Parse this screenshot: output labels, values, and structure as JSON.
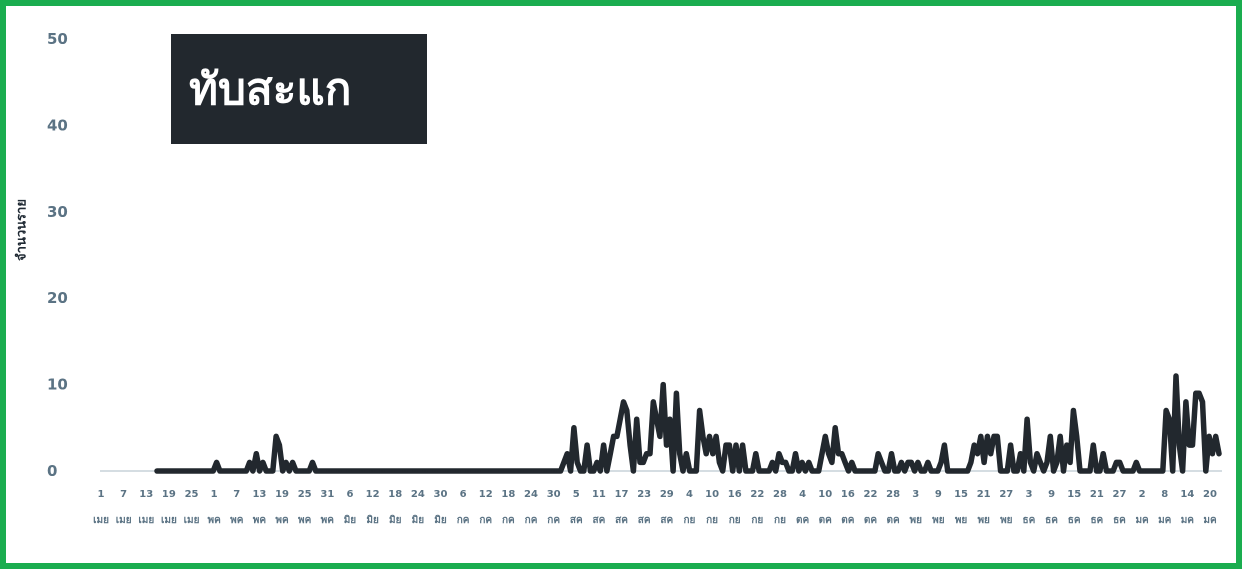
{
  "chart_data": {
    "type": "line",
    "title": "ทับสะแก",
    "ylabel": "จำนวนราย",
    "xlabel": "",
    "ylim": [
      0,
      50
    ],
    "yticks": [
      "0",
      "10",
      "20",
      "30",
      "40",
      "50"
    ],
    "xtick_days": [
      "1",
      "7",
      "13",
      "19",
      "25",
      "1",
      "7",
      "13",
      "19",
      "25",
      "31",
      "6",
      "12",
      "18",
      "24",
      "30",
      "6",
      "12",
      "18",
      "24",
      "30",
      "5",
      "11",
      "17",
      "23",
      "29",
      "4",
      "10",
      "16",
      "22",
      "28",
      "4",
      "10",
      "16",
      "22",
      "28",
      "3",
      "9",
      "15",
      "21",
      "27",
      "3",
      "9",
      "15",
      "21",
      "27",
      "2",
      "8",
      "14",
      "20"
    ],
    "xtick_months": [
      "เมย",
      "เมย",
      "เมย",
      "เมย",
      "เมย",
      "พค",
      "พค",
      "พค",
      "พค",
      "พค",
      "พค",
      "มิย",
      "มิย",
      "มิย",
      "มิย",
      "มิย",
      "กค",
      "กค",
      "กค",
      "กค",
      "กค",
      "สค",
      "สค",
      "สค",
      "สค",
      "สค",
      "กย",
      "กย",
      "กย",
      "กย",
      "กย",
      "ตค",
      "ตค",
      "ตค",
      "ตค",
      "ตค",
      "พย",
      "พย",
      "พย",
      "พย",
      "พย",
      "ธค",
      "ธค",
      "ธค",
      "ธค",
      "ธค",
      "มค",
      "มค",
      "มค",
      "มค"
    ],
    "series": [
      {
        "values": [
          0,
          0,
          0,
          0,
          0,
          0,
          0,
          0,
          0,
          0,
          0,
          0,
          0,
          0,
          0,
          0,
          0,
          0,
          1,
          0,
          0,
          0,
          0,
          0,
          0,
          0,
          0,
          0,
          1,
          0,
          2,
          0,
          1,
          0,
          0,
          0,
          4,
          3,
          0,
          1,
          0,
          1,
          0,
          0,
          0,
          0,
          0,
          1,
          0,
          0,
          0,
          0,
          0,
          0,
          0,
          0,
          0,
          0,
          0,
          0,
          0,
          0,
          0,
          0,
          0,
          0,
          0,
          0,
          0,
          0,
          0,
          0,
          0,
          0,
          0,
          0,
          0,
          0,
          0,
          0,
          0,
          0,
          0,
          0,
          0,
          0,
          0,
          0,
          0,
          0,
          0,
          0,
          0,
          0,
          0,
          0,
          0,
          0,
          0,
          0,
          0,
          0,
          0,
          0,
          0,
          0,
          0,
          0,
          0,
          0,
          0,
          0,
          0,
          0,
          0,
          0,
          0,
          0,
          0,
          0,
          0,
          0,
          0,
          1,
          2,
          0,
          5,
          1,
          0,
          0,
          3,
          0,
          0,
          1,
          0,
          3,
          0,
          2,
          4,
          4,
          6,
          8,
          7,
          3,
          0,
          6,
          1,
          1,
          2,
          2,
          8,
          6,
          4,
          10,
          3,
          6,
          0,
          9,
          2,
          0,
          2,
          0,
          0,
          0,
          7,
          4,
          2,
          4,
          2,
          4,
          1,
          0,
          3,
          3,
          0,
          3,
          0,
          3,
          0,
          0,
          0,
          2,
          0,
          0,
          0,
          0,
          1,
          0,
          2,
          1,
          1,
          0,
          0,
          2,
          0,
          1,
          0,
          1,
          0,
          0,
          0,
          2,
          4,
          2,
          1,
          5,
          2,
          2,
          1,
          0,
          1,
          0,
          0,
          0,
          0,
          0,
          0,
          0,
          2,
          1,
          0,
          0,
          2,
          0,
          0,
          1,
          0,
          1,
          1,
          0,
          1,
          0,
          0,
          1,
          0,
          0,
          0,
          1,
          3,
          0,
          0,
          0,
          0,
          0,
          0,
          0,
          1,
          3,
          2,
          4,
          1,
          4,
          2,
          4,
          4,
          0,
          0,
          0,
          3,
          0,
          0,
          2,
          0,
          6,
          1,
          0,
          2,
          1,
          0,
          1,
          4,
          0,
          1,
          4,
          0,
          3,
          1,
          7,
          4,
          0,
          0,
          0,
          0,
          3,
          0,
          0,
          2,
          0,
          0,
          0,
          1,
          1,
          0,
          0,
          0,
          0,
          1,
          0,
          0,
          0,
          0,
          0,
          0,
          0,
          0,
          7,
          6,
          0,
          11,
          3,
          0,
          8,
          3,
          3,
          9,
          9,
          8,
          0,
          4,
          2,
          4,
          2
        ]
      }
    ]
  }
}
